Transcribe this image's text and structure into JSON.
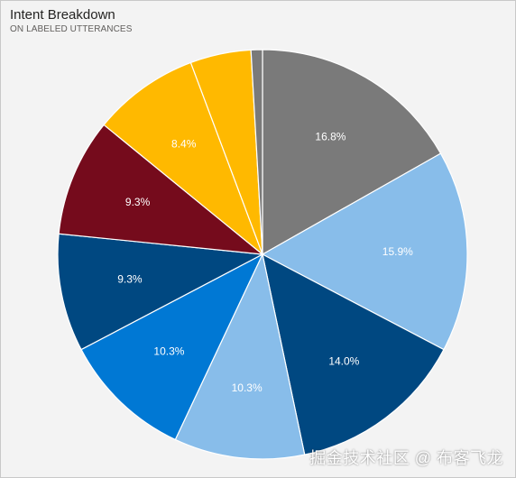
{
  "header": {
    "title": "Intent Breakdown",
    "subtitle": "ON LABELED UTTERANCES"
  },
  "watermark": "掘金技术社区 @ 布客飞龙",
  "chart_data": {
    "type": "pie",
    "title": "Intent Breakdown",
    "subtitle": "ON LABELED UTTERANCES",
    "start_angle_deg": 0,
    "direction": "clockwise",
    "slices": [
      {
        "value": 16.8,
        "label": "16.8%",
        "color": "#7a7a7a"
      },
      {
        "value": 15.9,
        "label": "15.9%",
        "color": "#88bdea"
      },
      {
        "value": 14.0,
        "label": "14.0%",
        "color": "#004881"
      },
      {
        "value": 10.3,
        "label": "10.3%",
        "color": "#88bdea"
      },
      {
        "value": 10.3,
        "label": "10.3%",
        "color": "#0078d4"
      },
      {
        "value": 9.3,
        "label": "9.3%",
        "color": "#004881"
      },
      {
        "value": 9.3,
        "label": "9.3%",
        "color": "#750b1c"
      },
      {
        "value": 8.4,
        "label": "8.4%",
        "color": "#ffb900"
      },
      {
        "value": 4.8,
        "label": "",
        "color": "#ffb900"
      },
      {
        "value": 0.9,
        "label": "",
        "color": "#7a7a7a"
      }
    ]
  }
}
